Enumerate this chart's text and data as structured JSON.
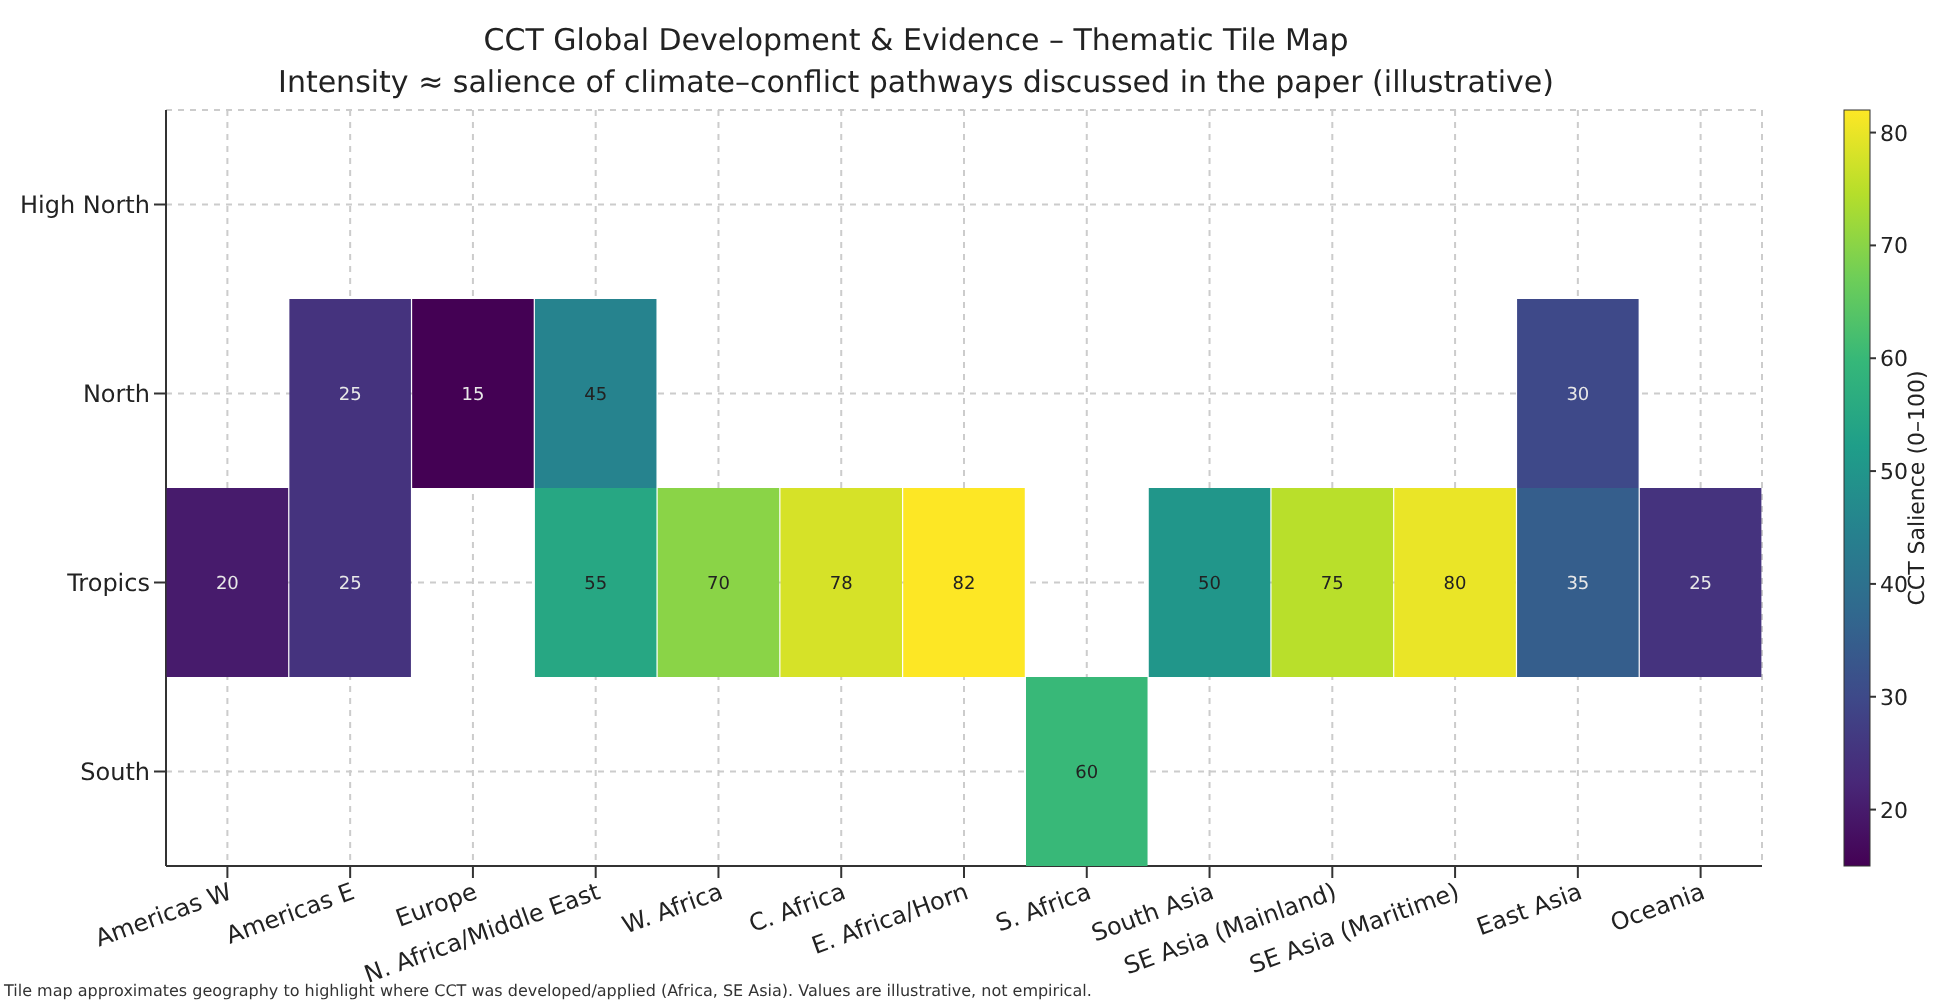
{
  "chart_data": {
    "type": "heatmap",
    "title": "CCT Global Development & Evidence – Thematic Tile Map",
    "subtitle": "Intensity ≈ salience of climate–conflict pathways discussed in the paper (illustrative)",
    "clabel": "CCT Salience (0–100)",
    "categories": [
      "Americas W",
      "Americas E",
      "Europe",
      "N. Africa/Middle East",
      "W. Africa",
      "C. Africa",
      "E. Africa/Horn",
      "S. Africa",
      "South Asia",
      "SE Asia (Mainland)",
      "SE Asia (Maritime)",
      "East Asia",
      "Oceania"
    ],
    "y_categories": [
      "High North",
      "North",
      "Tropics",
      "South"
    ],
    "cells": [
      [
        null,
        null,
        null,
        null,
        null,
        null,
        null,
        null,
        null,
        null,
        null,
        null,
        null
      ],
      [
        null,
        25,
        15,
        45,
        null,
        null,
        null,
        null,
        null,
        null,
        null,
        30,
        null
      ],
      [
        20,
        25,
        null,
        55,
        70,
        78,
        82,
        null,
        50,
        75,
        80,
        35,
        25
      ],
      [
        null,
        null,
        null,
        null,
        null,
        null,
        null,
        60,
        null,
        null,
        null,
        null,
        null
      ]
    ],
    "cell_labels": [
      [
        null,
        null,
        null,
        null,
        null,
        null,
        null,
        null,
        null,
        null,
        null,
        null,
        null
      ],
      [
        null,
        "25",
        "15",
        "45",
        null,
        null,
        null,
        null,
        null,
        null,
        null,
        "30",
        null
      ],
      [
        "20",
        "25",
        null,
        "55",
        "70",
        "78",
        "82",
        null,
        "50",
        "75",
        "80",
        "35",
        "25"
      ],
      [
        null,
        null,
        null,
        null,
        null,
        null,
        null,
        "60",
        null,
        null,
        null,
        null,
        null
      ]
    ],
    "clim": [
      15,
      82
    ],
    "cticks": [
      20,
      30,
      40,
      50,
      60,
      70,
      80
    ],
    "grid": true,
    "annotations": [
      "Tile map approximates geography to highlight where CCT was developed/applied (Africa, SE Asia). Values are illustrative, not empirical."
    ]
  }
}
